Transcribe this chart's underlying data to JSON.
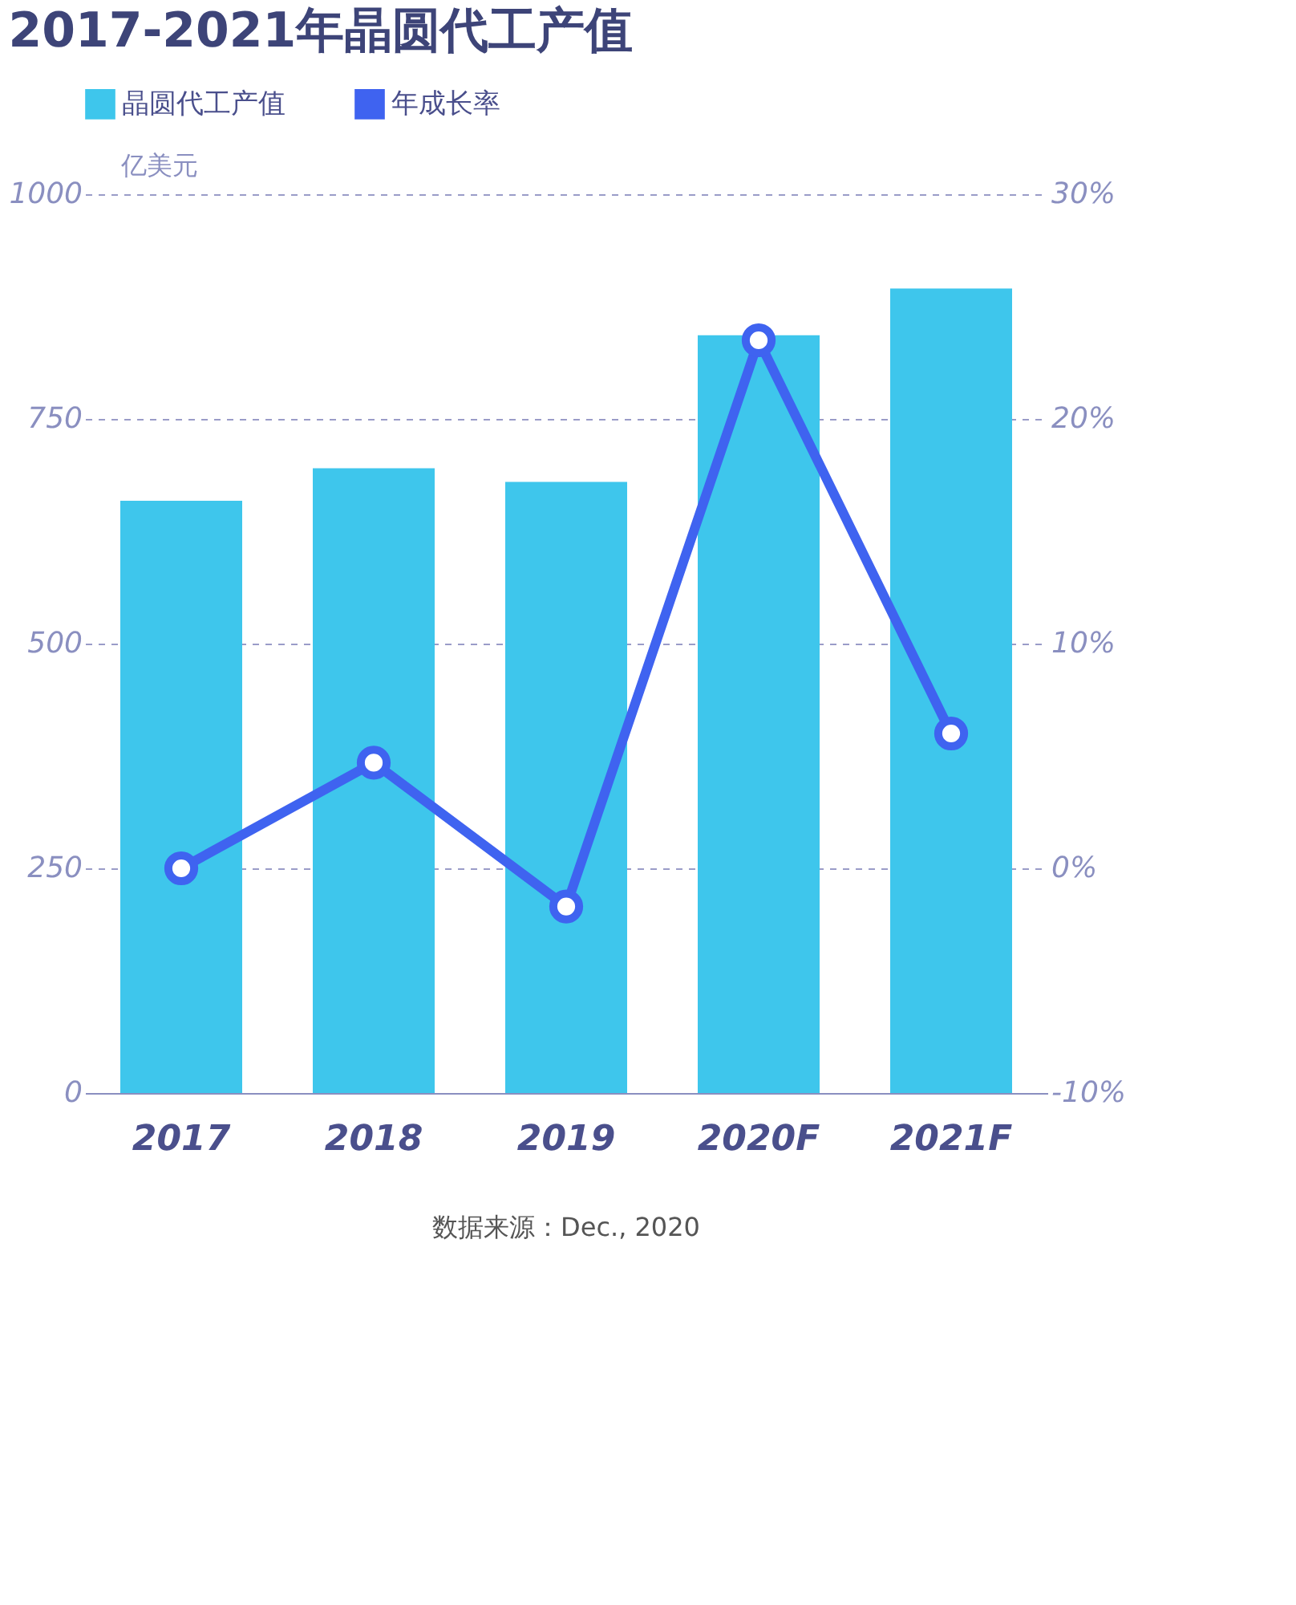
{
  "chart_data": {
    "type": "bar",
    "title": "2017-2021年晶圆代工产值",
    "categories": [
      "2017",
      "2018",
      "2019",
      "2020F",
      "2021F"
    ],
    "ylabel": "亿美元",
    "ylim": [
      0,
      1000
    ],
    "yticks": [
      0,
      250,
      500,
      750,
      1000
    ],
    "y2lim": [
      -10,
      30
    ],
    "y2ticks": [
      {
        "value": -10,
        "label": "-10%"
      },
      {
        "value": 0,
        "label": "0%"
      },
      {
        "value": 10,
        "label": "10%"
      },
      {
        "value": 20,
        "label": "20%"
      },
      {
        "value": 30,
        "label": "30%"
      }
    ],
    "series": [
      {
        "name": "晶圆代工产值",
        "color": "#3ec6ec",
        "values": [
          659,
          695,
          680,
          843,
          895
        ]
      },
      {
        "name": "年成长率",
        "type": "line",
        "axis": "y2",
        "color": "#3f63f0",
        "values": [
          0.0,
          4.7,
          -1.7,
          23.5,
          6.0
        ]
      }
    ],
    "marker": "circle",
    "line_style": "solid",
    "grid": "y",
    "legend": "top",
    "annotations": [
      "数据来源：Dec., 2020"
    ]
  }
}
